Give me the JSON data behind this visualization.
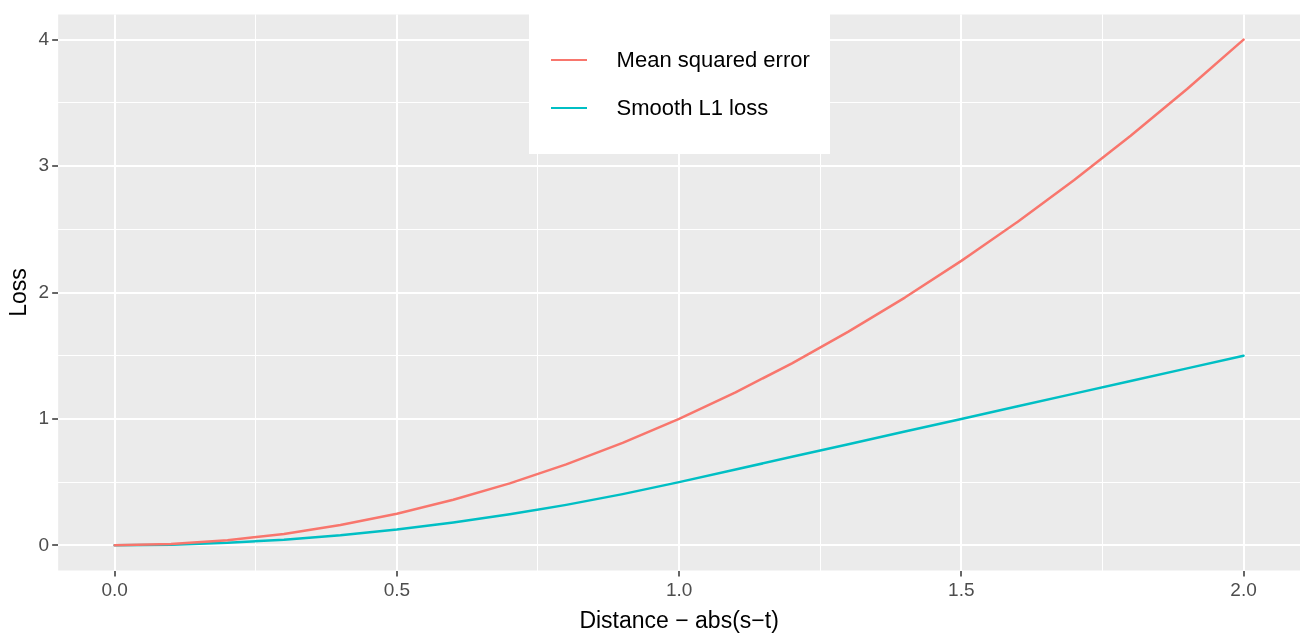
{
  "chart_data": {
    "type": "line",
    "xlabel": "Distance − abs(s−t)",
    "ylabel": "Loss",
    "x": [
      0,
      0.1,
      0.2,
      0.3,
      0.4,
      0.5,
      0.6,
      0.7,
      0.8,
      0.9,
      1.0,
      1.1,
      1.2,
      1.3,
      1.4,
      1.5,
      1.6,
      1.7,
      1.8,
      1.9,
      2.0
    ],
    "series": [
      {
        "name": "Mean squared error",
        "color": "#f8766d",
        "values": [
          0,
          0.01,
          0.04,
          0.09,
          0.16,
          0.25,
          0.36,
          0.49,
          0.64,
          0.81,
          1.0,
          1.21,
          1.44,
          1.69,
          1.96,
          2.25,
          2.56,
          2.89,
          3.24,
          3.61,
          4.0
        ]
      },
      {
        "name": "Smooth L1 loss",
        "color": "#00bfc4",
        "values": [
          0,
          0.005,
          0.02,
          0.045,
          0.08,
          0.125,
          0.18,
          0.245,
          0.32,
          0.405,
          0.5,
          0.6,
          0.7,
          0.8,
          0.9,
          1.0,
          1.1,
          1.2,
          1.3,
          1.4,
          1.5
        ]
      }
    ],
    "xlim": [
      -0.1,
      2.1
    ],
    "xticks": [
      {
        "value": 0.0,
        "label": "0.0"
      },
      {
        "value": 0.25,
        "label": null
      },
      {
        "value": 0.5,
        "label": "0.5"
      },
      {
        "value": 0.75,
        "label": null
      },
      {
        "value": 1.0,
        "label": "1.0"
      },
      {
        "value": 1.25,
        "label": null
      },
      {
        "value": 1.5,
        "label": "1.5"
      },
      {
        "value": 1.75,
        "label": null
      },
      {
        "value": 2.0,
        "label": "2.0"
      }
    ],
    "ylim": [
      -0.2,
      4.2
    ],
    "yticks": [
      0,
      {
        "value": 0.5,
        "label": null
      },
      1,
      {
        "value": 1.5,
        "label": null
      },
      2,
      {
        "value": 2.5,
        "label": null
      },
      3,
      {
        "value": 3.5,
        "label": null
      },
      4
    ],
    "grid": true,
    "legend": "top",
    "marker": "none",
    "line_style": "solid"
  }
}
